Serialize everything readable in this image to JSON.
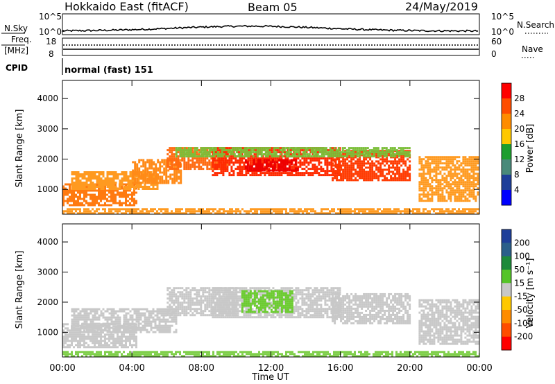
{
  "header": {
    "station": "Hokkaido East (fitACF)",
    "beam": "Beam 05",
    "date": "24/May/2019"
  },
  "strips": {
    "nsky_label": "N.Sky",
    "nsearch_label": "N.Search",
    "nsky_ticks": [
      "10^5",
      "10^0"
    ],
    "nsearch_ticks": [
      "10^5",
      "10^0"
    ],
    "freq_label_1": "Freq.",
    "freq_label_2": "[MHz]",
    "freq_ticks": [
      "18",
      "8"
    ],
    "nave_label": "Nave",
    "nave_ticks": [
      "60",
      "0"
    ],
    "cpid_label": "CPID",
    "cpid_value": "normal (fast) 151"
  },
  "chart_data": [
    {
      "type": "heatmap",
      "panel": "power",
      "ylabel": "Slant Range [km]",
      "xlabel": "",
      "ylim": [
        180,
        4600
      ],
      "yticks": [
        1000,
        2000,
        3000,
        4000
      ],
      "x_ticks": [
        "00:00",
        "04:00",
        "08:00",
        "12:00",
        "16:00",
        "20:00",
        "00:00"
      ],
      "colorbar": {
        "label": "Power [dB]",
        "ticks": [
          "28",
          "24",
          "20",
          "16",
          "12",
          "8",
          "4"
        ],
        "colors": [
          "#ff0000",
          "#ff4d00",
          "#ff8c00",
          "#ffc800",
          "#1e9e2e",
          "#4a8a7a",
          "#1f3f99",
          "#0000ff"
        ]
      },
      "bands": [
        {
          "t0": 0.0,
          "t1": 4.2,
          "r0": 500,
          "r1": 1200,
          "color": "#ff7a10"
        },
        {
          "t0": 0.5,
          "t1": 5.5,
          "r0": 1000,
          "r1": 1600,
          "color": "#ff9a20"
        },
        {
          "t0": 4.0,
          "t1": 6.8,
          "r0": 1200,
          "r1": 2000,
          "color": "#ff8a18"
        },
        {
          "t0": 6.0,
          "t1": 9.5,
          "r0": 1700,
          "r1": 2400,
          "color": "#ff6a10"
        },
        {
          "t0": 8.6,
          "t1": 16.0,
          "r0": 1500,
          "r1": 2400,
          "color": "#ff2a00"
        },
        {
          "t0": 10.5,
          "t1": 13.5,
          "r0": 1600,
          "r1": 2000,
          "color": "#ee0000"
        },
        {
          "t0": 15.5,
          "t1": 20.0,
          "r0": 1300,
          "r1": 2300,
          "color": "#ff3a00"
        },
        {
          "t0": 20.5,
          "t1": 24.0,
          "r0": 600,
          "r1": 2100,
          "color": "#ff9a20"
        },
        {
          "t0": 6.5,
          "t1": 20.0,
          "r0": 2100,
          "r1": 2400,
          "color": "#7bbf3a"
        },
        {
          "t0": 0.0,
          "t1": 24.0,
          "r0": 200,
          "r1": 380,
          "color": "#ff9a20"
        }
      ]
    },
    {
      "type": "heatmap",
      "panel": "velocity",
      "ylabel": "Slant Range [km]",
      "xlabel": "Time UT",
      "ylim": [
        180,
        4600
      ],
      "yticks": [
        1000,
        2000,
        3000,
        4000
      ],
      "x_ticks": [
        "00:00",
        "04:00",
        "08:00",
        "12:00",
        "16:00",
        "20:00",
        "00:00"
      ],
      "colorbar": {
        "label": "Velocity [m s⁻¹]",
        "ticks": [
          "200",
          "100",
          "50",
          "15",
          "-15",
          "-50",
          "-100",
          "-200"
        ],
        "colors": [
          "#1f3f99",
          "#2b5f8a",
          "#1e8a3a",
          "#55c428",
          "#c8c8c8",
          "#ffc800",
          "#ff8c00",
          "#ff4d00",
          "#ff0000"
        ]
      },
      "bands": [
        {
          "t0": 0.0,
          "t1": 4.2,
          "r0": 500,
          "r1": 1300,
          "color": "#c8c8c8"
        },
        {
          "t0": 0.5,
          "t1": 6.5,
          "r0": 1000,
          "r1": 1800,
          "color": "#c8c8c8"
        },
        {
          "t0": 6.0,
          "t1": 10.0,
          "r0": 1600,
          "r1": 2500,
          "color": "#c8c8c8"
        },
        {
          "t0": 8.6,
          "t1": 16.0,
          "r0": 1500,
          "r1": 2500,
          "color": "#c8c8c8"
        },
        {
          "t0": 10.3,
          "t1": 13.2,
          "r0": 1700,
          "r1": 2400,
          "color": "#6ccc30"
        },
        {
          "t0": 15.5,
          "t1": 20.0,
          "r0": 1300,
          "r1": 2300,
          "color": "#c8c8c8"
        },
        {
          "t0": 20.5,
          "t1": 24.0,
          "r0": 600,
          "r1": 2100,
          "color": "#c8c8c8"
        },
        {
          "t0": 0.0,
          "t1": 24.0,
          "r0": 200,
          "r1": 380,
          "color": "#7fcf4a"
        }
      ]
    }
  ]
}
